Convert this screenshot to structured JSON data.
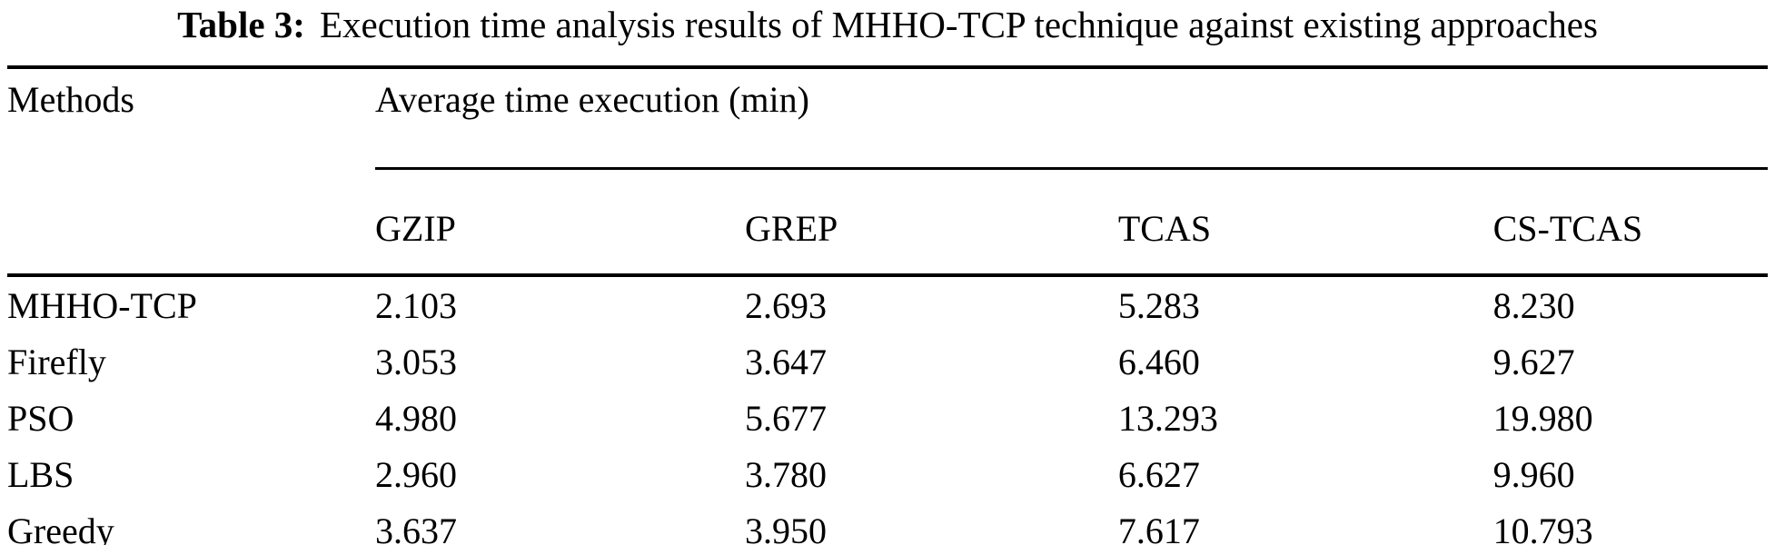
{
  "title": {
    "label": "Table 3:",
    "text": "Execution time analysis results of MHHO-TCP technique against existing approaches"
  },
  "table": {
    "col1_header": "Methods",
    "span_header": "Average time execution (min)",
    "columns": [
      "GZIP",
      "GREP",
      "TCAS",
      "CS-TCAS"
    ],
    "rows": [
      {
        "method": "MHHO-TCP",
        "values": [
          "2.103",
          "2.693",
          "5.283",
          "8.230"
        ]
      },
      {
        "method": "Firefly",
        "values": [
          "3.053",
          "3.647",
          "6.460",
          "9.627"
        ]
      },
      {
        "method": "PSO",
        "values": [
          "4.980",
          "5.677",
          "13.293",
          "19.980"
        ]
      },
      {
        "method": "LBS",
        "values": [
          "2.960",
          "3.780",
          "6.627",
          "9.960"
        ]
      },
      {
        "method": "Greedy",
        "values": [
          "3.637",
          "3.950",
          "7.617",
          "10.793"
        ]
      }
    ]
  },
  "chart_data": {
    "type": "table",
    "title": "Table 3: Execution time analysis results of MHHO-TCP technique against existing approaches",
    "row_header": "Methods",
    "column_group": "Average time execution (min)",
    "categories": [
      "GZIP",
      "GREP",
      "TCAS",
      "CS-TCAS"
    ],
    "series": [
      {
        "name": "MHHO-TCP",
        "values": [
          2.103,
          2.693,
          5.283,
          8.23
        ]
      },
      {
        "name": "Firefly",
        "values": [
          3.053,
          3.647,
          6.46,
          9.627
        ]
      },
      {
        "name": "PSO",
        "values": [
          4.98,
          5.677,
          13.293,
          19.98
        ]
      },
      {
        "name": "LBS",
        "values": [
          2.96,
          3.78,
          6.627,
          9.96
        ]
      },
      {
        "name": "Greedy",
        "values": [
          3.637,
          3.95,
          7.617,
          10.793
        ]
      }
    ]
  },
  "colors": {
    "text": "#000000",
    "background": "#ffffff",
    "rule": "#000000"
  }
}
